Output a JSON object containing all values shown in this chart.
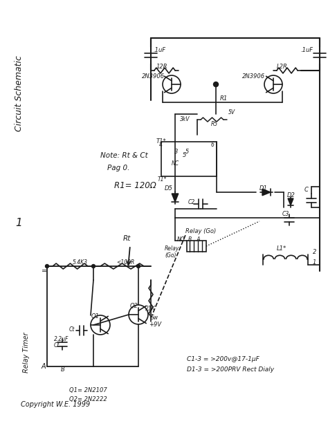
{
  "background_color": "#ffffff",
  "line_color": "#1a1a1a",
  "text_color": "#1a1a1a",
  "figsize": [
    4.74,
    6.19
  ],
  "dpi": 100,
  "title": "Circuit Schematic",
  "note1": "Note: Rt & Ct",
  "note2": "Pag 0.",
  "r1_label": "R1= 120Ω",
  "copyright": "Copyright W.E. 1999",
  "c_note1": "C1-3 = >200v@17-1μF",
  "c_note2": "D1-3 = >200PRV Rect Dialy",
  "q1_label": "Q1= 2N2107",
  "q2_label": "Q2= 2N2222"
}
